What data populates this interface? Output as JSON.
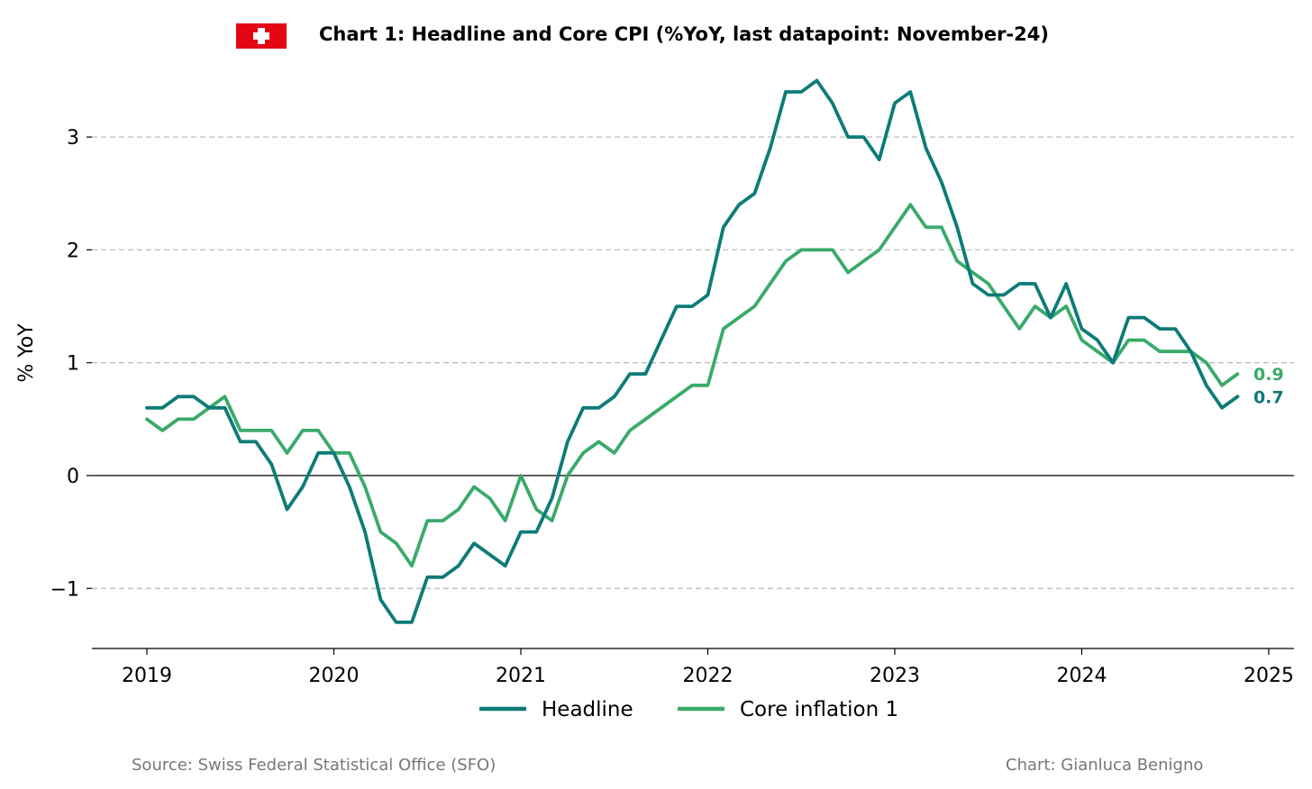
{
  "title": "Chart 1: Headline and Core CPI (%YoY, last datapoint: November-24)",
  "flag": {
    "name": "swiss-flag-icon",
    "color": "#e30613",
    "cross_color": "#ffffff"
  },
  "footer": {
    "source": "Source: Swiss Federal Statistical Office (SFO)",
    "credit": "Chart: Gianluca Benigno"
  },
  "chart_data": {
    "type": "line",
    "title": "Chart 1: Headline and Core CPI (%YoY, last datapoint: November-24)",
    "xlabel": "",
    "ylabel": "% YoY",
    "x_start": "2019-01",
    "x_ticks": [
      "2019",
      "2020",
      "2021",
      "2022",
      "2023",
      "2024",
      "2025"
    ],
    "y_ticks": [
      -1,
      0,
      1,
      2,
      3
    ],
    "y_tick_labels": [
      "−1",
      "0",
      "1",
      "2",
      "3"
    ],
    "xlim": [
      "2018-09",
      "2025-02"
    ],
    "ylim": [
      -1.53,
      3.55
    ],
    "grid": "dashed horizontal at y ticks, solid zero line",
    "legend": "bottom-center",
    "series": [
      {
        "name": "Headline",
        "color": "#0e7b78",
        "end_label": "0.7",
        "values": [
          0.6,
          0.6,
          0.7,
          0.7,
          0.6,
          0.6,
          0.3,
          0.3,
          0.1,
          -0.3,
          -0.1,
          0.2,
          0.2,
          -0.1,
          -0.5,
          -1.1,
          -1.3,
          -1.3,
          -0.9,
          -0.9,
          -0.8,
          -0.6,
          -0.7,
          -0.8,
          -0.5,
          -0.5,
          -0.2,
          0.3,
          0.6,
          0.6,
          0.7,
          0.9,
          0.9,
          1.2,
          1.5,
          1.5,
          1.6,
          2.2,
          2.4,
          2.5,
          2.9,
          3.4,
          3.4,
          3.5,
          3.3,
          3.0,
          3.0,
          2.8,
          3.3,
          3.4,
          2.9,
          2.6,
          2.2,
          1.7,
          1.6,
          1.6,
          1.7,
          1.7,
          1.4,
          1.7,
          1.3,
          1.2,
          1.0,
          1.4,
          1.4,
          1.3,
          1.3,
          1.1,
          0.8,
          0.6,
          0.7
        ]
      },
      {
        "name": "Core inflation 1",
        "color": "#3aaa6a",
        "end_label": "0.9",
        "values": [
          0.5,
          0.4,
          0.5,
          0.5,
          0.6,
          0.7,
          0.4,
          0.4,
          0.4,
          0.2,
          0.4,
          0.4,
          0.2,
          0.2,
          -0.1,
          -0.5,
          -0.6,
          -0.8,
          -0.4,
          -0.4,
          -0.3,
          -0.1,
          -0.2,
          -0.4,
          0.0,
          -0.3,
          -0.4,
          0.0,
          0.2,
          0.3,
          0.2,
          0.4,
          0.5,
          0.6,
          0.7,
          0.8,
          0.8,
          1.3,
          1.4,
          1.5,
          1.7,
          1.9,
          2.0,
          2.0,
          2.0,
          1.8,
          1.9,
          2.0,
          2.2,
          2.4,
          2.2,
          2.2,
          1.9,
          1.8,
          1.7,
          1.5,
          1.3,
          1.5,
          1.4,
          1.5,
          1.2,
          1.1,
          1.0,
          1.2,
          1.2,
          1.1,
          1.1,
          1.1,
          1.0,
          0.8,
          0.9
        ]
      }
    ]
  }
}
